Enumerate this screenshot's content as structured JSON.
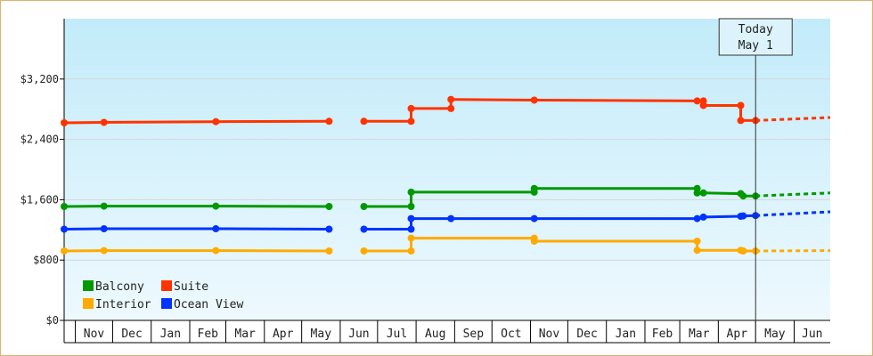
{
  "chart_data": {
    "type": "line",
    "title": "",
    "xlabel": "",
    "ylabel": "",
    "ylim": [
      0,
      4000
    ],
    "yticks": [
      0,
      800,
      1600,
      2400,
      3200
    ],
    "ytick_labels": [
      "$0",
      "$800",
      "$1,600",
      "$2,400",
      "$3,200"
    ],
    "xlim": [
      "2011-10-23",
      "2013-06-30"
    ],
    "months": [
      {
        "label": "Nov",
        "start": "2011-11-01",
        "end": "2011-12-01"
      },
      {
        "label": "Dec",
        "start": "2011-12-01",
        "end": "2012-01-01"
      },
      {
        "label": "Jan",
        "start": "2012-01-01",
        "end": "2012-02-01"
      },
      {
        "label": "Feb",
        "start": "2012-02-01",
        "end": "2012-03-01"
      },
      {
        "label": "Mar",
        "start": "2012-03-01",
        "end": "2012-04-01"
      },
      {
        "label": "Apr",
        "start": "2012-04-01",
        "end": "2012-05-01"
      },
      {
        "label": "May",
        "start": "2012-05-01",
        "end": "2012-06-01"
      },
      {
        "label": "Jun",
        "start": "2012-06-01",
        "end": "2012-07-01"
      },
      {
        "label": "Jul",
        "start": "2012-07-01",
        "end": "2012-08-01"
      },
      {
        "label": "Aug",
        "start": "2012-08-01",
        "end": "2012-09-01"
      },
      {
        "label": "Sep",
        "start": "2012-09-01",
        "end": "2012-10-01"
      },
      {
        "label": "Oct",
        "start": "2012-10-01",
        "end": "2012-11-01"
      },
      {
        "label": "Nov",
        "start": "2012-11-01",
        "end": "2012-12-01"
      },
      {
        "label": "Dec",
        "start": "2012-12-01",
        "end": "2013-01-01"
      },
      {
        "label": "Jan",
        "start": "2013-01-01",
        "end": "2013-02-01"
      },
      {
        "label": "Feb",
        "start": "2013-02-01",
        "end": "2013-03-01"
      },
      {
        "label": "Mar",
        "start": "2013-03-01",
        "end": "2013-04-01"
      },
      {
        "label": "Apr",
        "start": "2013-04-01",
        "end": "2013-05-01"
      },
      {
        "label": "May",
        "start": "2013-05-01",
        "end": "2013-06-01"
      },
      {
        "label": "Jun",
        "start": "2013-06-01",
        "end": "2013-07-01"
      }
    ],
    "today": {
      "date": "2013-05-01",
      "label_line1": "Today",
      "label_line2": "May 1"
    },
    "legend": {
      "placement": "bottom-left"
    },
    "series": [
      {
        "name": "Suite",
        "color": "#ff3300",
        "segments": [
          [
            [
              "2011-10-23",
              2620
            ],
            [
              "2011-11-24",
              2625
            ],
            [
              "2012-02-22",
              2635
            ],
            [
              "2012-05-23",
              2640
            ]
          ],
          [
            [
              "2012-06-20",
              2640
            ],
            [
              "2012-07-28",
              2640
            ],
            [
              "2012-07-28",
              2810
            ],
            [
              "2012-08-29",
              2810
            ],
            [
              "2012-08-29",
              2930
            ],
            [
              "2012-11-04",
              2920
            ],
            [
              "2013-03-15",
              2910
            ],
            [
              "2013-03-20",
              2910
            ],
            [
              "2013-03-20",
              2850
            ],
            [
              "2013-04-19",
              2850
            ],
            [
              "2013-04-19",
              2650
            ],
            [
              "2013-05-01",
              2650
            ]
          ]
        ],
        "markers": [
          [
            "2011-10-23",
            2620
          ],
          [
            "2011-11-24",
            2625
          ],
          [
            "2012-02-22",
            2635
          ],
          [
            "2012-05-23",
            2640
          ],
          [
            "2012-06-20",
            2640
          ],
          [
            "2012-07-28",
            2640
          ],
          [
            "2012-07-28",
            2810
          ],
          [
            "2012-08-29",
            2810
          ],
          [
            "2012-08-29",
            2930
          ],
          [
            "2012-11-04",
            2920
          ],
          [
            "2013-03-15",
            2910
          ],
          [
            "2013-03-20",
            2910
          ],
          [
            "2013-03-20",
            2850
          ],
          [
            "2013-04-19",
            2850
          ],
          [
            "2013-04-19",
            2650
          ],
          [
            "2013-05-01",
            2650
          ]
        ],
        "forecast": [
          [
            "2013-05-01",
            2650
          ],
          [
            "2013-06-30",
            2690
          ]
        ]
      },
      {
        "name": "Balcony",
        "color": "#009900",
        "segments": [
          [
            [
              "2011-10-23",
              1510
            ],
            [
              "2011-11-24",
              1515
            ],
            [
              "2012-02-22",
              1515
            ],
            [
              "2012-05-23",
              1510
            ]
          ],
          [
            [
              "2012-06-20",
              1510
            ],
            [
              "2012-07-28",
              1510
            ],
            [
              "2012-07-28",
              1700
            ],
            [
              "2012-11-04",
              1700
            ],
            [
              "2012-11-04",
              1750
            ],
            [
              "2013-03-15",
              1750
            ],
            [
              "2013-03-15",
              1690
            ],
            [
              "2013-03-20",
              1690
            ],
            [
              "2013-04-19",
              1680
            ],
            [
              "2013-04-21",
              1650
            ],
            [
              "2013-05-01",
              1650
            ]
          ]
        ],
        "markers": [
          [
            "2011-10-23",
            1510
          ],
          [
            "2011-11-24",
            1515
          ],
          [
            "2012-02-22",
            1515
          ],
          [
            "2012-05-23",
            1510
          ],
          [
            "2012-06-20",
            1510
          ],
          [
            "2012-07-28",
            1510
          ],
          [
            "2012-07-28",
            1700
          ],
          [
            "2012-11-04",
            1700
          ],
          [
            "2012-11-04",
            1750
          ],
          [
            "2013-03-15",
            1750
          ],
          [
            "2013-03-15",
            1690
          ],
          [
            "2013-03-20",
            1690
          ],
          [
            "2013-04-19",
            1680
          ],
          [
            "2013-04-21",
            1650
          ],
          [
            "2013-05-01",
            1650
          ]
        ],
        "forecast": [
          [
            "2013-05-01",
            1650
          ],
          [
            "2013-06-30",
            1690
          ]
        ]
      },
      {
        "name": "Ocean View",
        "color": "#0033ff",
        "segments": [
          [
            [
              "2011-10-23",
              1210
            ],
            [
              "2011-11-24",
              1215
            ],
            [
              "2012-02-22",
              1215
            ],
            [
              "2012-05-23",
              1210
            ]
          ],
          [
            [
              "2012-06-20",
              1210
            ],
            [
              "2012-07-28",
              1210
            ],
            [
              "2012-07-28",
              1350
            ],
            [
              "2012-08-29",
              1350
            ],
            [
              "2012-11-04",
              1350
            ],
            [
              "2013-03-15",
              1350
            ],
            [
              "2013-03-20",
              1370
            ],
            [
              "2013-04-19",
              1380
            ],
            [
              "2013-04-21",
              1385
            ],
            [
              "2013-05-01",
              1390
            ]
          ]
        ],
        "markers": [
          [
            "2011-10-23",
            1210
          ],
          [
            "2011-11-24",
            1215
          ],
          [
            "2012-02-22",
            1215
          ],
          [
            "2012-05-23",
            1210
          ],
          [
            "2012-06-20",
            1210
          ],
          [
            "2012-07-28",
            1210
          ],
          [
            "2012-07-28",
            1350
          ],
          [
            "2012-08-29",
            1350
          ],
          [
            "2012-11-04",
            1350
          ],
          [
            "2013-03-15",
            1350
          ],
          [
            "2013-03-20",
            1370
          ],
          [
            "2013-04-19",
            1380
          ],
          [
            "2013-04-21",
            1385
          ],
          [
            "2013-05-01",
            1390
          ]
        ],
        "forecast": [
          [
            "2013-05-01",
            1390
          ],
          [
            "2013-06-30",
            1440
          ]
        ]
      },
      {
        "name": "Interior",
        "color": "#ffaa00",
        "segments": [
          [
            [
              "2011-10-23",
              920
            ],
            [
              "2011-11-24",
              925
            ],
            [
              "2012-02-22",
              925
            ],
            [
              "2012-05-23",
              920
            ]
          ],
          [
            [
              "2012-06-20",
              920
            ],
            [
              "2012-07-28",
              920
            ],
            [
              "2012-07-28",
              1090
            ],
            [
              "2012-11-04",
              1090
            ],
            [
              "2012-11-04",
              1050
            ],
            [
              "2013-03-15",
              1050
            ],
            [
              "2013-03-15",
              930
            ],
            [
              "2013-04-19",
              930
            ],
            [
              "2013-04-21",
              920
            ],
            [
              "2013-05-01",
              920
            ]
          ]
        ],
        "markers": [
          [
            "2011-10-23",
            920
          ],
          [
            "2011-11-24",
            925
          ],
          [
            "2012-02-22",
            925
          ],
          [
            "2012-05-23",
            920
          ],
          [
            "2012-06-20",
            920
          ],
          [
            "2012-07-28",
            920
          ],
          [
            "2012-07-28",
            1090
          ],
          [
            "2012-11-04",
            1090
          ],
          [
            "2012-11-04",
            1050
          ],
          [
            "2013-03-15",
            1050
          ],
          [
            "2013-03-15",
            930
          ],
          [
            "2013-04-19",
            930
          ],
          [
            "2013-04-21",
            920
          ],
          [
            "2013-05-01",
            920
          ]
        ],
        "forecast": [
          [
            "2013-05-01",
            920
          ],
          [
            "2013-06-30",
            925
          ]
        ]
      }
    ],
    "legend_order": [
      {
        "name": "Balcony",
        "color": "#009900"
      },
      {
        "name": "Suite",
        "color": "#ff3300"
      },
      {
        "name": "Interior",
        "color": "#ffaa00"
      },
      {
        "name": "Ocean View",
        "color": "#0033ff"
      }
    ]
  }
}
